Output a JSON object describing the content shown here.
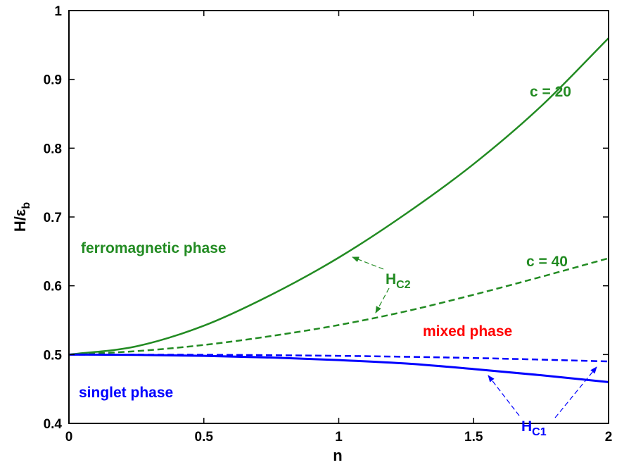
{
  "chart_data": {
    "type": "line",
    "title": "",
    "xlabel": "n",
    "ylabel_main": "H/ε",
    "ylabel_sub": "b",
    "xlim": [
      0,
      2
    ],
    "ylim": [
      0.4,
      1.0
    ],
    "xticks": [
      0,
      0.5,
      1,
      1.5,
      2
    ],
    "xtick_labels": [
      "0",
      "0.5",
      "1",
      "1.5",
      "2"
    ],
    "yticks": [
      0.4,
      0.5,
      0.6,
      0.7,
      0.8,
      0.9,
      1.0
    ],
    "ytick_labels": [
      "0.4",
      "0.5",
      "0.6",
      "0.7",
      "0.8",
      "0.9",
      "1"
    ],
    "grid": false,
    "colors": {
      "green": "#228b22",
      "blue": "#0000ff",
      "red": "#ff0000",
      "axis": "#000000"
    },
    "series": [
      {
        "style": "solid",
        "color_key": "green",
        "x": [
          0,
          0.25,
          0.5,
          0.75,
          1.0,
          1.25,
          1.5,
          1.75,
          2.0
        ],
        "y": [
          0.5,
          0.512,
          0.542,
          0.587,
          0.641,
          0.705,
          0.777,
          0.861,
          0.96
        ]
      },
      {
        "style": "dashed",
        "color_key": "green",
        "x": [
          0,
          0.25,
          0.5,
          0.75,
          1.0,
          1.25,
          1.5,
          1.75,
          2.0
        ],
        "y": [
          0.5,
          0.505,
          0.514,
          0.527,
          0.543,
          0.563,
          0.587,
          0.613,
          0.64
        ]
      },
      {
        "style": "solid",
        "color_key": "blue",
        "x": [
          0,
          0.25,
          0.5,
          0.75,
          1.0,
          1.25,
          1.5,
          1.75,
          2.0
        ],
        "y": [
          0.5,
          0.4996,
          0.4982,
          0.4957,
          0.492,
          0.487,
          0.479,
          0.47,
          0.46
        ]
      },
      {
        "style": "dashed",
        "color_key": "blue",
        "x": [
          0,
          0.25,
          0.5,
          0.75,
          1.0,
          1.25,
          1.5,
          1.75,
          2.0
        ],
        "y": [
          0.5,
          0.4999,
          0.4997,
          0.4991,
          0.4982,
          0.4968,
          0.495,
          0.4927,
          0.49
        ]
      }
    ],
    "annotations": {
      "c20": "c = 20",
      "c40": "c = 40",
      "ferro": "ferromagnetic phase",
      "mixed": "mixed phase",
      "singlet": "singlet phase",
      "hc2_main": "H",
      "hc2_sub": "C2",
      "hc1_main": "H",
      "hc1_sub": "C1"
    }
  }
}
